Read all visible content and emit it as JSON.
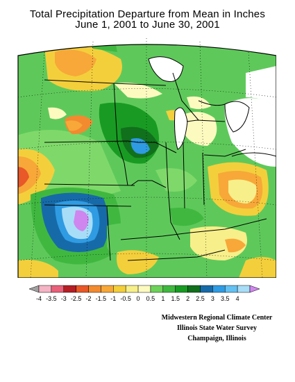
{
  "title_line1": "Total Precipitation Departure from Mean in Inches",
  "title_line2": "June 1, 2001 to June 30, 2001",
  "legend": {
    "colors": [
      "#a0a0a0",
      "#f5b3c6",
      "#e8607a",
      "#b41e24",
      "#e85828",
      "#f28a30",
      "#f7a838",
      "#f4cf3c",
      "#f7ef8a",
      "#fdfac0",
      "#6ed25a",
      "#40b840",
      "#199b23",
      "#11701c",
      "#176aa8",
      "#2f9be2",
      "#64c1f2",
      "#a8ddf7",
      "#cf86ee"
    ],
    "labels": [
      "-4",
      "-3.5",
      "-3",
      "-2.5",
      "-2",
      "-1.5",
      "-1",
      "-0.5",
      "0",
      "0.5",
      "1",
      "1.5",
      "2",
      "2.5",
      "3",
      "3.5",
      "4"
    ]
  },
  "credits": {
    "line1": "Midwestern Regional Climate Center",
    "line2": "Illinois State Water Survey",
    "line3": "Champaign, Illinois"
  }
}
